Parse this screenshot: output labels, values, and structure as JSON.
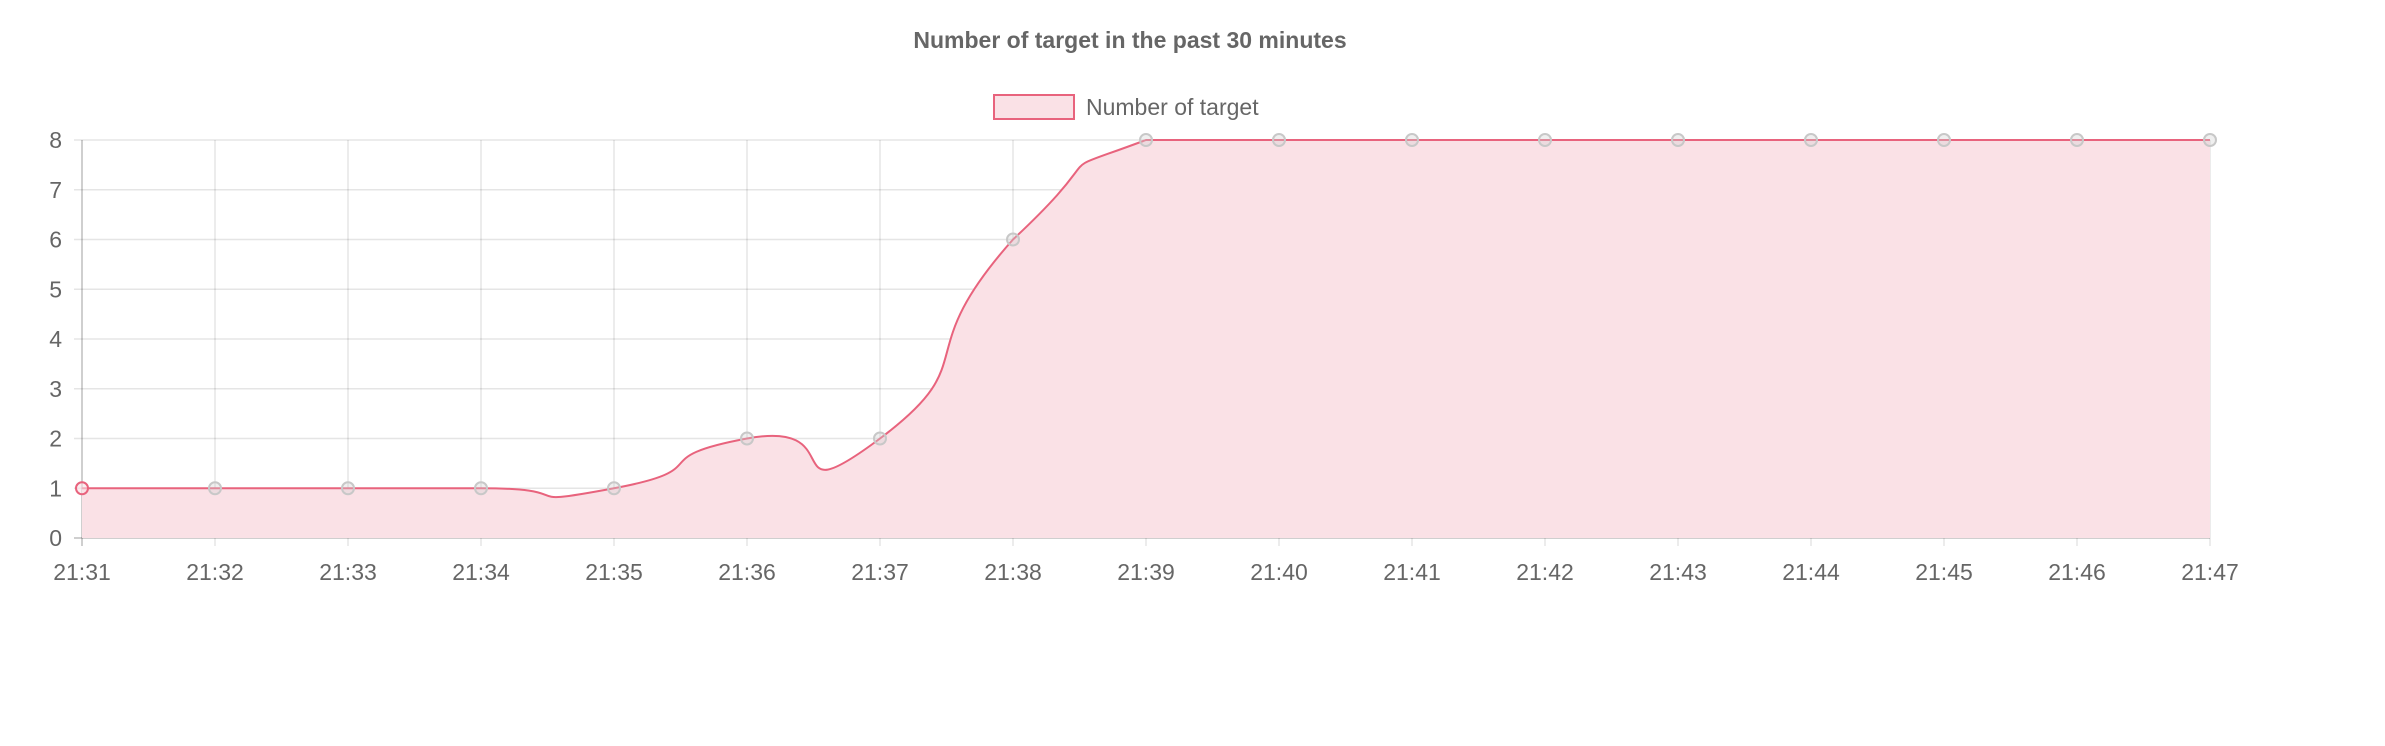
{
  "chart_data": {
    "type": "line",
    "title": "Number of target in the past 30 minutes",
    "xlabel": "",
    "ylabel": "",
    "categories": [
      "21:31",
      "21:32",
      "21:33",
      "21:34",
      "21:35",
      "21:36",
      "21:37",
      "21:38",
      "21:39",
      "21:40",
      "21:41",
      "21:42",
      "21:43",
      "21:44",
      "21:45",
      "21:46",
      "21:47"
    ],
    "series": [
      {
        "name": "Number of target",
        "values": [
          1,
          1,
          1,
          1,
          1,
          2,
          2,
          6,
          8,
          8,
          8,
          8,
          8,
          8,
          8,
          8,
          8
        ],
        "line_color": "#e8637d",
        "fill_color": "#fae1e6",
        "point_color": "#c8c8c8"
      }
    ],
    "ylim": [
      0,
      8
    ],
    "yticks": [
      0,
      1,
      2,
      3,
      4,
      5,
      6,
      7,
      8
    ],
    "area_fill": true,
    "smooth": true,
    "grid": true,
    "legend_position": "top-center"
  }
}
